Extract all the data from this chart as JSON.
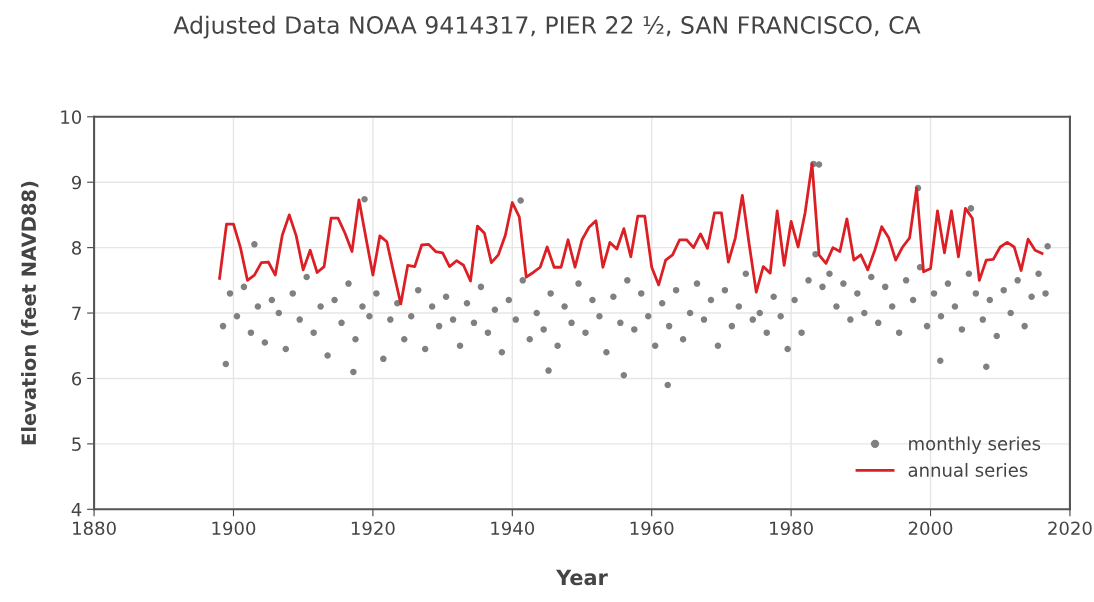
{
  "chart_data": {
    "type": "scatter",
    "title": "Adjusted Data NOAA 9414317, PIER 22 ½, SAN FRANCISCO, CA",
    "xlabel": "Year",
    "ylabel": "Elevation (feet NAVD88)",
    "xlim": [
      1880,
      2020
    ],
    "xticks": [
      1880,
      1900,
      1920,
      1940,
      1960,
      1980,
      2000,
      2020
    ],
    "ylim": [
      4,
      10
    ],
    "yticks": [
      4,
      5,
      6,
      7,
      8,
      9,
      10
    ],
    "grid": true,
    "legend": "bottom right",
    "series": [
      {
        "name": "monthly series",
        "marker": "circle",
        "color": "#808080",
        "x": [
          1898.5,
          1899.5,
          1900.5,
          1901.5,
          1902.5,
          1903.5,
          1904.5,
          1905.5,
          1906.5,
          1907.5,
          1908.5,
          1909.5,
          1910.5,
          1911.5,
          1912.5,
          1913.5,
          1914.5,
          1915.5,
          1916.5,
          1917.5,
          1918.5,
          1919.5,
          1920.5,
          1921.5,
          1922.5,
          1923.5,
          1924.5,
          1925.5,
          1926.5,
          1927.5,
          1928.5,
          1929.5,
          1930.5,
          1931.5,
          1932.5,
          1933.5,
          1934.5,
          1935.5,
          1936.5,
          1937.5,
          1938.5,
          1939.5,
          1940.5,
          1941.5,
          1942.5,
          1943.5,
          1944.5,
          1945.5,
          1946.5,
          1947.5,
          1948.5,
          1949.5,
          1950.5,
          1951.5,
          1952.5,
          1953.5,
          1954.5,
          1955.5,
          1956.5,
          1957.5,
          1958.5,
          1959.5,
          1960.5,
          1961.5,
          1962.5,
          1963.5,
          1964.5,
          1965.5,
          1966.5,
          1967.5,
          1968.5,
          1969.5,
          1970.5,
          1971.5,
          1972.5,
          1973.5,
          1974.5,
          1975.5,
          1976.5,
          1977.5,
          1978.5,
          1979.5,
          1980.5,
          1981.5,
          1982.5,
          1983.5,
          1984.5,
          1985.5,
          1986.5,
          1987.5,
          1988.5,
          1989.5,
          1990.5,
          1991.5,
          1992.5,
          1993.5,
          1994.5,
          1995.5,
          1996.5,
          1997.5,
          1998.5,
          1999.5,
          2000.5,
          2001.5,
          2002.5,
          2003.5,
          2004.5,
          2005.5,
          2006.5,
          2007.5,
          2008.5,
          2009.5,
          2010.5,
          2011.5,
          2012.5,
          2013.5,
          2014.5,
          2015.5,
          2016.5,
          1898.9,
          1917.2,
          1918.8,
          1941.2,
          1945.2,
          1956.0,
          1962.3,
          1983.2,
          1984.0,
          2001.4,
          2008.0,
          1998.2,
          2005.8,
          2016.8,
          1903.0
        ],
        "values": [
          6.8,
          7.3,
          6.95,
          7.4,
          6.7,
          7.1,
          6.55,
          7.2,
          7.0,
          6.45,
          7.3,
          6.9,
          7.55,
          6.7,
          7.1,
          6.35,
          7.2,
          6.85,
          7.45,
          6.6,
          7.1,
          6.95,
          7.3,
          6.3,
          6.9,
          7.15,
          6.6,
          6.95,
          7.35,
          6.45,
          7.1,
          6.8,
          7.25,
          6.9,
          6.5,
          7.15,
          6.85,
          7.4,
          6.7,
          7.05,
          6.4,
          7.2,
          6.9,
          7.5,
          6.6,
          7.0,
          6.75,
          7.3,
          6.5,
          7.1,
          6.85,
          7.45,
          6.7,
          7.2,
          6.95,
          6.4,
          7.25,
          6.85,
          7.5,
          6.75,
          7.3,
          6.95,
          6.5,
          7.15,
          6.8,
          7.35,
          6.6,
          7.0,
          7.45,
          6.9,
          7.2,
          6.5,
          7.35,
          6.8,
          7.1,
          7.6,
          6.9,
          7.0,
          6.7,
          7.25,
          6.95,
          6.45,
          7.2,
          6.7,
          7.5,
          7.9,
          7.4,
          7.6,
          7.1,
          7.45,
          6.9,
          7.3,
          7.0,
          7.55,
          6.85,
          7.4,
          7.1,
          6.7,
          7.5,
          7.2,
          7.7,
          6.8,
          7.3,
          6.95,
          7.45,
          7.1,
          6.75,
          7.6,
          7.3,
          6.9,
          7.2,
          6.65,
          7.35,
          7.0,
          7.5,
          6.8,
          7.25,
          7.6,
          7.3,
          6.22,
          6.1,
          8.74,
          8.72,
          6.12,
          6.05,
          5.9,
          9.28,
          9.27,
          6.27,
          6.18,
          8.91,
          8.6,
          8.02,
          8.05
        ]
      },
      {
        "name": "annual series",
        "type": "line",
        "marker": "none",
        "line_style": "solid",
        "color": "#dc1e25",
        "x": [
          1898,
          1899,
          1900,
          1901,
          1902,
          1903,
          1904,
          1905,
          1906,
          1907,
          1908,
          1909,
          1910,
          1911,
          1912,
          1913,
          1914,
          1915,
          1916,
          1917,
          1918,
          1919,
          1920,
          1921,
          1922,
          1923,
          1924,
          1925,
          1926,
          1927,
          1928,
          1929,
          1930,
          1931,
          1932,
          1933,
          1934,
          1935,
          1936,
          1937,
          1938,
          1939,
          1940,
          1941,
          1942,
          1943,
          1944,
          1945,
          1946,
          1947,
          1948,
          1949,
          1950,
          1951,
          1952,
          1953,
          1954,
          1955,
          1956,
          1957,
          1958,
          1959,
          1960,
          1961,
          1962,
          1963,
          1964,
          1965,
          1966,
          1967,
          1968,
          1969,
          1970,
          1971,
          1972,
          1973,
          1974,
          1975,
          1976,
          1977,
          1978,
          1979,
          1980,
          1981,
          1982,
          1983,
          1984,
          1985,
          1986,
          1987,
          1988,
          1989,
          1990,
          1991,
          1992,
          1993,
          1994,
          1995,
          1996,
          1997,
          1998,
          1999,
          2000,
          2001,
          2002,
          2003,
          2004,
          2005,
          2006,
          2007,
          2008,
          2009,
          2010,
          2011,
          2012,
          2013,
          2014,
          2015,
          2016
        ],
        "values": [
          7.53,
          8.36,
          8.36,
          8.0,
          7.5,
          7.58,
          7.77,
          7.78,
          7.58,
          8.19,
          8.5,
          8.18,
          7.66,
          7.96,
          7.62,
          7.71,
          8.45,
          8.45,
          8.22,
          7.94,
          8.73,
          8.15,
          7.58,
          8.18,
          8.09,
          7.61,
          7.14,
          7.73,
          7.71,
          8.04,
          8.05,
          7.94,
          7.92,
          7.71,
          7.8,
          7.73,
          7.49,
          8.33,
          8.22,
          7.77,
          7.89,
          8.19,
          8.69,
          8.47,
          7.55,
          7.62,
          7.7,
          8.01,
          7.7,
          7.7,
          8.12,
          7.7,
          8.12,
          8.31,
          8.41,
          7.7,
          8.08,
          7.98,
          8.29,
          7.86,
          8.48,
          8.48,
          7.7,
          7.43,
          7.81,
          7.89,
          8.12,
          8.12,
          8.0,
          8.21,
          7.99,
          8.53,
          8.53,
          7.78,
          8.15,
          8.8,
          8.04,
          7.32,
          7.71,
          7.61,
          8.56,
          7.73,
          8.4,
          8.01,
          8.53,
          9.28,
          7.89,
          7.76,
          8.0,
          7.94,
          8.44,
          7.81,
          7.89,
          7.66,
          7.96,
          8.32,
          8.15,
          7.81,
          8.01,
          8.15,
          8.91,
          7.63,
          7.68,
          8.56,
          7.92,
          8.56,
          7.86,
          8.6,
          8.45,
          7.5,
          7.81,
          7.82,
          8.01,
          8.08,
          8.01,
          7.65,
          8.13,
          7.96,
          7.91
        ]
      }
    ]
  }
}
